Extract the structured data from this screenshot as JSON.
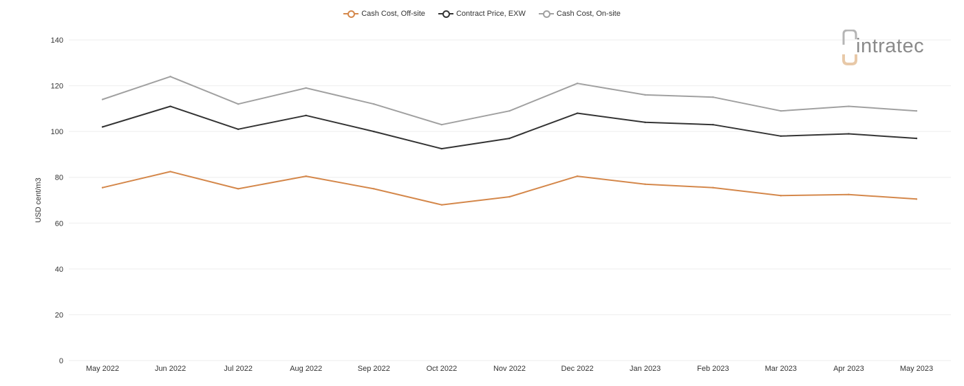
{
  "logo": {
    "text": "intratec"
  },
  "colors": {
    "grid": "#eeeeee",
    "axis_text": "#333333"
  },
  "chart_data": {
    "type": "line",
    "title": "",
    "xlabel": "",
    "ylabel": "USD cent/m3",
    "ylim": [
      0,
      140
    ],
    "yticks": [
      0,
      20,
      40,
      60,
      80,
      100,
      120,
      140
    ],
    "grid": true,
    "legend_position": "top-center",
    "categories": [
      "May 2022",
      "Jun 2022",
      "Jul 2022",
      "Aug 2022",
      "Sep 2022",
      "Oct 2022",
      "Nov 2022",
      "Dec 2022",
      "Jan 2023",
      "Feb 2023",
      "Mar 2023",
      "Apr 2023",
      "May 2023"
    ],
    "series": [
      {
        "name": "Cash Cost, Off-site",
        "color": "#d4874a",
        "values": [
          75.5,
          82.5,
          75,
          80.5,
          75,
          68,
          71.5,
          80.5,
          77,
          75.5,
          72,
          72.5,
          70.5
        ]
      },
      {
        "name": "Contract Price, EXW",
        "color": "#333333",
        "values": [
          102,
          111,
          101,
          107,
          100,
          92.5,
          97,
          108,
          104,
          103,
          98,
          99,
          97
        ]
      },
      {
        "name": "Cash Cost, On-site",
        "color": "#a0a0a0",
        "values": [
          114,
          124,
          112,
          119,
          112,
          103,
          109,
          121,
          116,
          115,
          109,
          111,
          109
        ]
      }
    ]
  }
}
